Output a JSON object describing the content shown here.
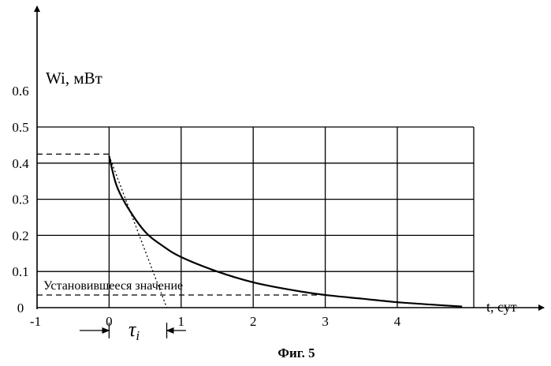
{
  "chart_data": {
    "type": "line",
    "ylabel": "Wi, мВт",
    "xlabel": "t, сут",
    "caption": "Фиг. 5",
    "xlim": [
      -1,
      5
    ],
    "ylim": [
      0,
      0.6
    ],
    "x_ticks": [
      -1,
      0,
      1,
      2,
      3,
      4
    ],
    "y_ticks": [
      0,
      0.1,
      0.2,
      0.3,
      0.4,
      0.5,
      0.6
    ],
    "y_tick_labels": [
      "0",
      "0.1",
      "0.2",
      "0.3",
      "0.4",
      "0.5",
      "0.6"
    ],
    "grid": true,
    "series": [
      {
        "x": [
          0,
          0.1,
          0.25,
          0.5,
          0.75,
          1,
          1.5,
          2,
          2.5,
          3,
          3.5,
          4,
          4.5,
          4.9
        ],
        "y": [
          0.42,
          0.34,
          0.28,
          0.21,
          0.17,
          0.14,
          0.1,
          0.07,
          0.05,
          0.035,
          0.025,
          0.015,
          0.008,
          0.003
        ]
      }
    ],
    "reference_lines": [
      {
        "kind": "initial-level",
        "x": [
          -1,
          0
        ],
        "y": [
          0.425,
          0.425
        ],
        "style": "dashed"
      },
      {
        "kind": "steady-state-level",
        "x": [
          -1,
          3
        ],
        "y": [
          0.035,
          0.035
        ],
        "style": "dashed"
      },
      {
        "kind": "tangent",
        "x": [
          0,
          0.8
        ],
        "y": [
          0.42,
          0
        ],
        "style": "dotted"
      }
    ],
    "annotations": [
      {
        "text": "Установившееся значение"
      },
      {
        "text": "τi",
        "marker_range": [
          0,
          0.8
        ]
      }
    ]
  }
}
